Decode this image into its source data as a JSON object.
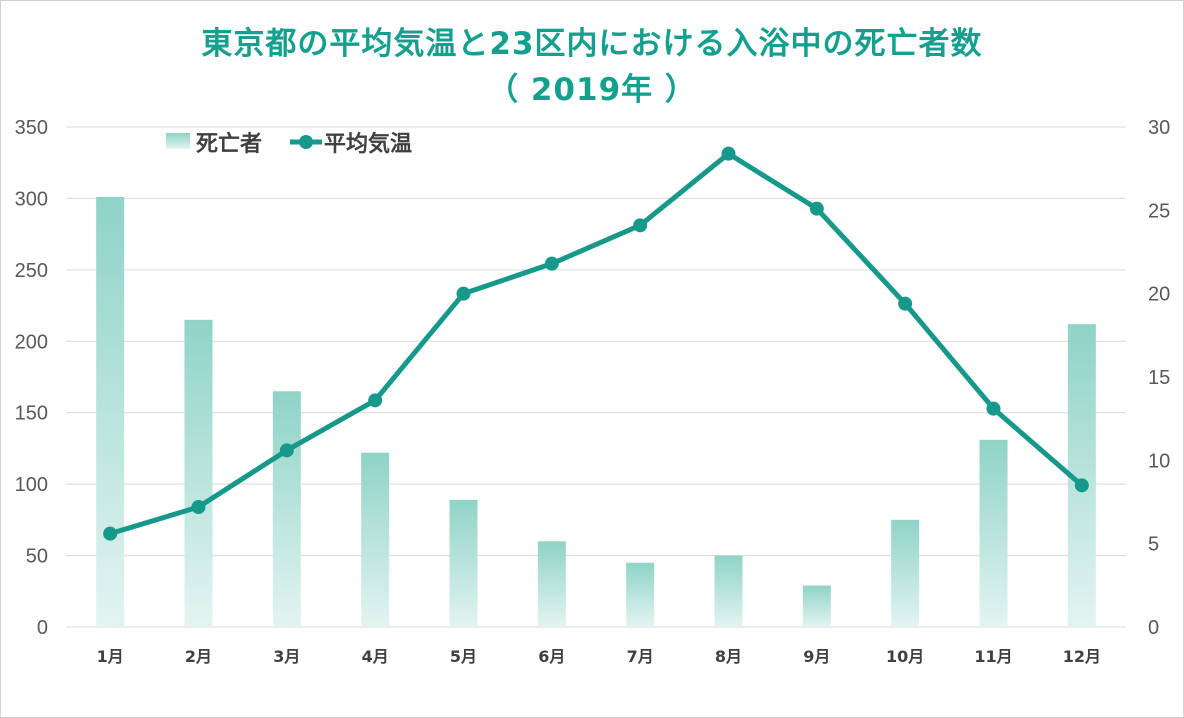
{
  "title_line1": "東京都の平均気温と23区内における入浴中の死亡者数",
  "title_line2": "（ 2019年 ）",
  "colors": {
    "title": "#13a08e",
    "bar_top": "#8fd3c7",
    "bar_bottom": "#e3f4f1",
    "line": "#16988a",
    "grid": "#d9d9d9"
  },
  "chart_data": {
    "type": "bar+line",
    "categories": [
      "1月",
      "2月",
      "3月",
      "4月",
      "5月",
      "6月",
      "7月",
      "8月",
      "9月",
      "10月",
      "11月",
      "12月"
    ],
    "series": [
      {
        "name": "死亡者",
        "type": "bar",
        "axis": "left",
        "values": [
          301,
          215,
          165,
          122,
          89,
          60,
          45,
          50,
          29,
          75,
          131,
          212
        ]
      },
      {
        "name": "平均気温",
        "type": "line",
        "axis": "right",
        "values": [
          5.6,
          7.2,
          10.6,
          13.6,
          20.0,
          21.8,
          24.1,
          28.4,
          25.1,
          19.4,
          13.1,
          8.5
        ]
      }
    ],
    "left_axis": {
      "ylim": [
        0,
        350
      ],
      "ticks": [
        "0",
        "50",
        "100",
        "150",
        "200",
        "250",
        "300",
        "350"
      ]
    },
    "right_axis": {
      "ylim": [
        0,
        30
      ],
      "ticks": [
        "0",
        "5",
        "10",
        "15",
        "20",
        "25",
        "30"
      ]
    },
    "grid": true,
    "legend_position": "top-left"
  }
}
